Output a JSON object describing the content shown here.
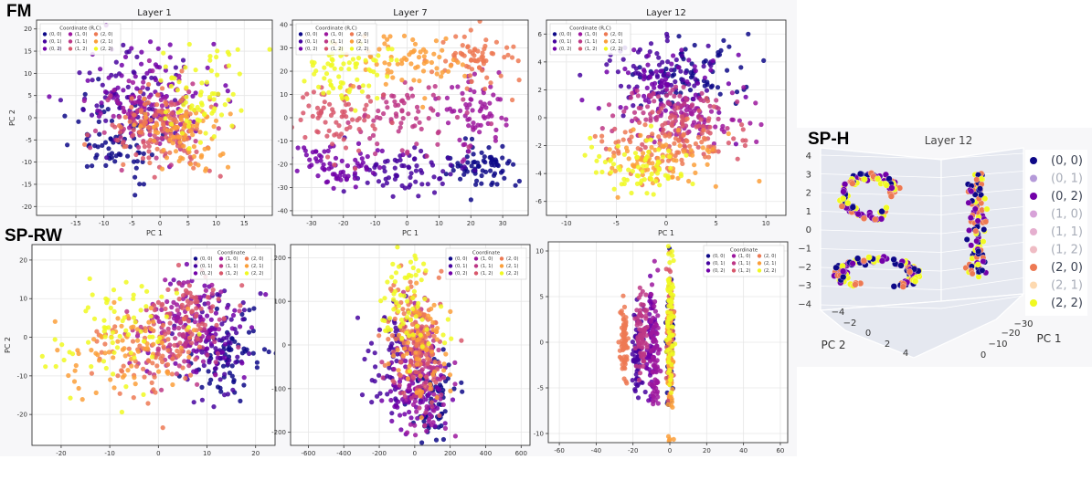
{
  "palette": {
    "(0, 0)": "#0d0887",
    "(0, 1)": "#46039f",
    "(0, 2)": "#7201a8",
    "(1, 0)": "#9c179e",
    "(1, 1)": "#bd3786",
    "(1, 2)": "#d8576b",
    "(2, 0)": "#ed7953",
    "(2, 1)": "#fb9f3a",
    "(2, 2)": "#f0f921"
  },
  "groups": {
    "fm": "FM",
    "sprw": "SP-RW",
    "sph": "SP-H"
  },
  "chart_data": [
    {
      "id": "fm-l1",
      "type": "scatter",
      "group": "FM",
      "title": "Layer 1",
      "xlabel": "PC 1",
      "ylabel": "PC 2",
      "xlim": [
        -22,
        20
      ],
      "ylim": [
        -22,
        22
      ],
      "xticks": [
        -15,
        -10,
        -5,
        0,
        5,
        10,
        15
      ],
      "yticks": [
        -20,
        -15,
        -10,
        -5,
        0,
        5,
        10,
        15,
        20
      ],
      "legend": {
        "title": "Coordinate (R,C)",
        "position": "top-left",
        "labels": [
          "(0, 0)",
          "(0, 1)",
          "(0, 2)",
          "(1, 0)",
          "(1, 1)",
          "(1, 2)",
          "(2, 0)",
          "(2, 1)",
          "(2, 2)"
        ]
      },
      "clusters": [
        {
          "label": "(0, 0)",
          "cx": -8,
          "cy": -5,
          "sx": 4,
          "sy": 5
        },
        {
          "label": "(0, 1)",
          "cx": -5,
          "cy": 4,
          "sx": 5,
          "sy": 5
        },
        {
          "label": "(0, 2)",
          "cx": -2,
          "cy": 7,
          "sx": 6,
          "sy": 5
        },
        {
          "label": "(1, 0)",
          "cx": -1,
          "cy": 2,
          "sx": 5,
          "sy": 4
        },
        {
          "label": "(1, 1)",
          "cx": 0,
          "cy": -2,
          "sx": 5,
          "sy": 4
        },
        {
          "label": "(1, 2)",
          "cx": 1,
          "cy": -4,
          "sx": 5,
          "sy": 4
        },
        {
          "label": "(2, 0)",
          "cx": 0,
          "cy": -1,
          "sx": 4,
          "sy": 4
        },
        {
          "label": "(2, 1)",
          "cx": 4,
          "cy": -4,
          "sx": 4,
          "sy": 4
        },
        {
          "label": "(2, 2)",
          "cx": 7,
          "cy": 4,
          "sx": 4,
          "sy": 6
        }
      ]
    },
    {
      "id": "fm-l7",
      "type": "scatter",
      "group": "FM",
      "title": "Layer 7",
      "xlabel": "PC 1",
      "ylabel": "",
      "xlim": [
        -36,
        38
      ],
      "ylim": [
        -42,
        42
      ],
      "xticks": [
        -30,
        -20,
        -10,
        0,
        10,
        20,
        30
      ],
      "yticks": [
        -40,
        -30,
        -20,
        -10,
        0,
        10,
        20,
        30,
        40
      ],
      "legend": {
        "title": "Coordinate (R,C)",
        "position": "top-left",
        "labels": [
          "(0, 0)",
          "(0, 1)",
          "(0, 2)",
          "(1, 0)",
          "(1, 1)",
          "(1, 2)",
          "(2, 0)",
          "(2, 1)",
          "(2, 2)"
        ]
      },
      "clusters": [
        {
          "label": "(0, 0)",
          "cx": 22,
          "cy": -22,
          "sx": 6,
          "sy": 5
        },
        {
          "label": "(0, 1)",
          "cx": 0,
          "cy": -22,
          "sx": 10,
          "sy": 5
        },
        {
          "label": "(0, 2)",
          "cx": -22,
          "cy": -20,
          "sx": 7,
          "sy": 5
        },
        {
          "label": "(1, 0)",
          "cx": 22,
          "cy": 3,
          "sx": 6,
          "sy": 8
        },
        {
          "label": "(1, 1)",
          "cx": 0,
          "cy": 0,
          "sx": 9,
          "sy": 7
        },
        {
          "label": "(1, 2)",
          "cx": -22,
          "cy": 0,
          "sx": 7,
          "sy": 7
        },
        {
          "label": "(2, 0)",
          "cx": 22,
          "cy": 27,
          "sx": 6,
          "sy": 6
        },
        {
          "label": "(2, 1)",
          "cx": 0,
          "cy": 25,
          "sx": 9,
          "sy": 6
        },
        {
          "label": "(2, 2)",
          "cx": -18,
          "cy": 20,
          "sx": 8,
          "sy": 7
        }
      ]
    },
    {
      "id": "fm-l12",
      "type": "scatter",
      "group": "FM",
      "title": "Layer 12",
      "xlabel": "PC 1",
      "ylabel": "",
      "xlim": [
        -12,
        12
      ],
      "ylim": [
        -7,
        7
      ],
      "xticks": [
        -10,
        -5,
        0,
        5,
        10
      ],
      "yticks": [
        -6,
        -4,
        -2,
        0,
        2,
        4,
        6
      ],
      "legend": {
        "title": "Coordinate (R,C)",
        "position": "top-left",
        "labels": [
          "(0, 0)",
          "(0, 1)",
          "(0, 2)",
          "(1, 0)",
          "(1, 1)",
          "(1, 2)",
          "(2, 0)",
          "(2, 1)",
          "(2, 2)"
        ]
      },
      "clusters": [
        {
          "label": "(0, 0)",
          "cx": 3,
          "cy": 3,
          "sx": 2.5,
          "sy": 1.2
        },
        {
          "label": "(0, 1)",
          "cx": -1,
          "cy": 3.5,
          "sx": 2.5,
          "sy": 1.2
        },
        {
          "label": "(0, 2)",
          "cx": 0,
          "cy": 2,
          "sx": 3,
          "sy": 1.3
        },
        {
          "label": "(1, 0)",
          "cx": 3,
          "cy": 0,
          "sx": 3,
          "sy": 1
        },
        {
          "label": "(1, 1)",
          "cx": 0,
          "cy": 0.5,
          "sx": 3,
          "sy": 1
        },
        {
          "label": "(1, 2)",
          "cx": 2,
          "cy": -1,
          "sx": 3,
          "sy": 1
        },
        {
          "label": "(2, 0)",
          "cx": 0,
          "cy": -2,
          "sx": 3,
          "sy": 1
        },
        {
          "label": "(2, 1)",
          "cx": -1,
          "cy": -3,
          "sx": 3,
          "sy": 1
        },
        {
          "label": "(2, 2)",
          "cx": -2,
          "cy": -3.5,
          "sx": 2.5,
          "sy": 1
        }
      ]
    },
    {
      "id": "sprw-a",
      "type": "scatter",
      "group": "SP-RW",
      "title": "",
      "xlabel": "",
      "ylabel": "PC 2",
      "xlim": [
        -26,
        24
      ],
      "ylim": [
        -28,
        24
      ],
      "xticks": [
        -20,
        -10,
        0,
        10,
        20
      ],
      "yticks": [
        -20,
        -10,
        0,
        10,
        20
      ],
      "legend": {
        "title": "Coordinate",
        "position": "top-right",
        "labels": [
          "(0, 0)",
          "(0, 1)",
          "(0, 2)",
          "(1, 0)",
          "(1, 1)",
          "(1, 2)",
          "(2, 0)",
          "(2, 1)",
          "(2, 2)"
        ]
      },
      "clusters": [
        {
          "label": "(0, 0)",
          "cx": 14,
          "cy": -4,
          "sx": 4,
          "sy": 6
        },
        {
          "label": "(0, 1)",
          "cx": 12,
          "cy": -2,
          "sx": 4,
          "sy": 7
        },
        {
          "label": "(0, 2)",
          "cx": 10,
          "cy": 2,
          "sx": 5,
          "sy": 7
        },
        {
          "label": "(1, 0)",
          "cx": 6,
          "cy": 3,
          "sx": 4,
          "sy": 6
        },
        {
          "label": "(1, 1)",
          "cx": 4,
          "cy": 0,
          "sx": 5,
          "sy": 6
        },
        {
          "label": "(1, 2)",
          "cx": 6,
          "cy": 6,
          "sx": 4,
          "sy": 5
        },
        {
          "label": "(2, 0)",
          "cx": -2,
          "cy": -6,
          "sx": 5,
          "sy": 6
        },
        {
          "label": "(2, 1)",
          "cx": -6,
          "cy": -2,
          "sx": 6,
          "sy": 6
        },
        {
          "label": "(2, 2)",
          "cx": -8,
          "cy": 2,
          "sx": 7,
          "sy": 7
        }
      ]
    },
    {
      "id": "sprw-b",
      "type": "scatter",
      "group": "SP-RW",
      "title": "",
      "xlabel": "",
      "ylabel": "",
      "xlim": [
        -700,
        650
      ],
      "ylim": [
        -230,
        230
      ],
      "xticks": [
        -600,
        -400,
        -200,
        0,
        200,
        400,
        600
      ],
      "yticks": [
        -200,
        -100,
        0,
        100,
        200
      ],
      "legend": {
        "title": "Coordinate",
        "position": "top-right",
        "labels": [
          "(0, 0)",
          "(0, 1)",
          "(0, 2)",
          "(1, 0)",
          "(1, 1)",
          "(1, 2)",
          "(2, 0)",
          "(2, 1)",
          "(2, 2)"
        ]
      },
      "clusters": [
        {
          "label": "(0, 0)",
          "cx": 100,
          "cy": -120,
          "sx": 60,
          "sy": 50
        },
        {
          "label": "(0, 1)",
          "cx": -100,
          "cy": -40,
          "sx": 80,
          "sy": 70
        },
        {
          "label": "(0, 2)",
          "cx": 0,
          "cy": -120,
          "sx": 80,
          "sy": 50
        },
        {
          "label": "(1, 0)",
          "cx": 50,
          "cy": -80,
          "sx": 70,
          "sy": 60
        },
        {
          "label": "(1, 1)",
          "cx": 20,
          "cy": -40,
          "sx": 80,
          "sy": 60
        },
        {
          "label": "(1, 2)",
          "cx": 50,
          "cy": -20,
          "sx": 70,
          "sy": 50
        },
        {
          "label": "(2, 0)",
          "cx": 0,
          "cy": 40,
          "sx": 80,
          "sy": 60
        },
        {
          "label": "(2, 1)",
          "cx": 40,
          "cy": 0,
          "sx": 80,
          "sy": 60
        },
        {
          "label": "(2, 2)",
          "cx": -40,
          "cy": 100,
          "sx": 90,
          "sy": 60
        }
      ]
    },
    {
      "id": "sprw-c",
      "type": "scatter",
      "group": "SP-RW",
      "title": "",
      "xlabel": "",
      "ylabel": "",
      "xlim": [
        -66,
        64
      ],
      "ylim": [
        -11,
        11
      ],
      "xticks": [
        -60,
        -40,
        -20,
        0,
        20,
        40,
        60
      ],
      "yticks": [
        -10,
        -5,
        0,
        5,
        10
      ],
      "legend": {
        "title": "Coordinate",
        "position": "top-right",
        "labels": [
          "(0, 0)",
          "(0, 1)",
          "(0, 2)",
          "(1, 0)",
          "(1, 1)",
          "(1, 2)",
          "(2, 0)",
          "(2, 1)",
          "(2, 2)"
        ]
      },
      "clusters": [
        {
          "label": "(0, 0)",
          "cx": 0,
          "cy": 0,
          "sx": 1,
          "sy": 4
        },
        {
          "label": "(0, 1)",
          "cx": -17,
          "cy": -1,
          "sx": 1.5,
          "sy": 2.5
        },
        {
          "label": "(0, 2)",
          "cx": -10,
          "cy": 0,
          "sx": 1.5,
          "sy": 3
        },
        {
          "label": "(1, 0)",
          "cx": -8,
          "cy": -1,
          "sx": 1.5,
          "sy": 3
        },
        {
          "label": "(1, 1)",
          "cx": -15,
          "cy": 1,
          "sx": 1.5,
          "sy": 2.5
        },
        {
          "label": "(1, 2)",
          "cx": 0,
          "cy": 1,
          "sx": 1,
          "sy": 4
        },
        {
          "label": "(2, 0)",
          "cx": -25,
          "cy": 0,
          "sx": 1,
          "sy": 2
        },
        {
          "label": "(2, 1)",
          "cx": 0,
          "cy": -2,
          "sx": 1,
          "sy": 4
        },
        {
          "label": "(2, 2)",
          "cx": 0,
          "cy": 3,
          "sx": 1,
          "sy": 4
        }
      ]
    },
    {
      "id": "sph-3d",
      "type": "scatter3d",
      "group": "SP-H",
      "title": "Layer 12",
      "xlabel": "PC 1",
      "ylabel": "PC 2",
      "pc2_ticks": [
        "−4",
        "−2",
        "0",
        "2",
        "4"
      ],
      "pc1_ticks": [
        "−30",
        "−20",
        "−10",
        "0"
      ],
      "vertical_ticks": [
        "4",
        "3",
        "2",
        "1",
        "0",
        "−1",
        "−2",
        "−3",
        "−4"
      ],
      "legend": {
        "title": "",
        "position": "right",
        "labels": [
          "(0, 0)",
          "(0, 1)",
          "(0, 2)",
          "(1, 0)",
          "(1, 1)",
          "(1, 2)",
          "(2, 0)",
          "(2, 1)",
          "(2, 2)"
        ]
      }
    }
  ]
}
